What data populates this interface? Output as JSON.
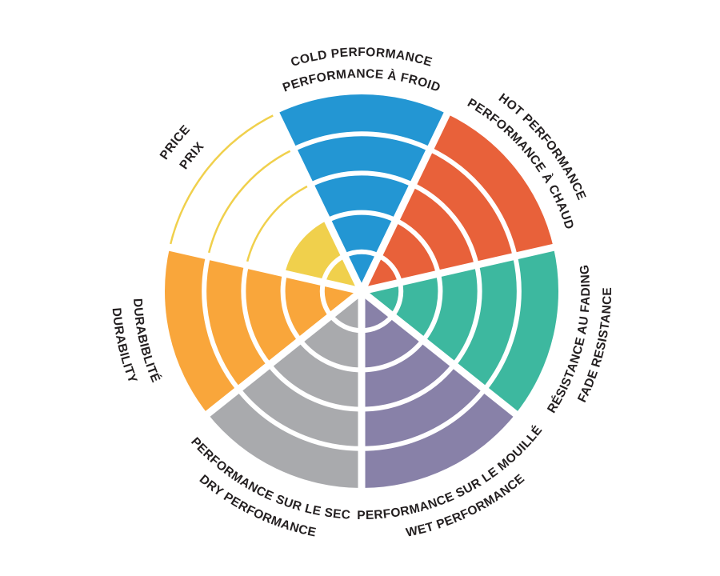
{
  "page": {
    "background_color": "#ffffff",
    "text_color": "#231F20"
  },
  "chart_data": {
    "type": "polar-sector-rating",
    "subtype": "tire-performance-wheel",
    "title": "",
    "rings": 5,
    "max_value": 5,
    "direction": "clockwise",
    "first_sector_center_deg": -90,
    "grid": "concentric-arcs",
    "legend_position": "curved-labels-around-rim",
    "separator_color": "#ffffff",
    "sectors": [
      {
        "id": "cold-performance",
        "label_en": "COLD PERFORMANCE",
        "label_fr": "PERFORMANCE À FROID",
        "value": 5,
        "color": "#2396D3"
      },
      {
        "id": "hot-performance",
        "label_en": "HOT PERFORMANCE",
        "label_fr": "PERFORMANCE À CHAUD",
        "value": 5,
        "color": "#E8613A"
      },
      {
        "id": "fade-resistance",
        "label_en": "FADE RESISTANCE",
        "label_fr": "RÉSISTANCE AU FADING",
        "value": 5,
        "color": "#3DB89F"
      },
      {
        "id": "wet-performance",
        "label_en": "WET PERFORMANCE",
        "label_fr": "PERFORMANCE SUR LE MOUILLÉ",
        "value": 5,
        "color": "#8881A8"
      },
      {
        "id": "dry-performance",
        "label_en": "DRY PERFORMANCE",
        "label_fr": "PERFORMANCE SUR LE SEC",
        "value": 5,
        "color": "#A9AAAD"
      },
      {
        "id": "durability",
        "label_en": "DURABILITY",
        "label_fr": "DURABIBLITÉ",
        "value": 5,
        "color": "#F9A63B"
      },
      {
        "id": "price",
        "label_en": "PRICE",
        "label_fr": "PRIX",
        "value": 2,
        "color": "#F0D04C"
      }
    ]
  }
}
